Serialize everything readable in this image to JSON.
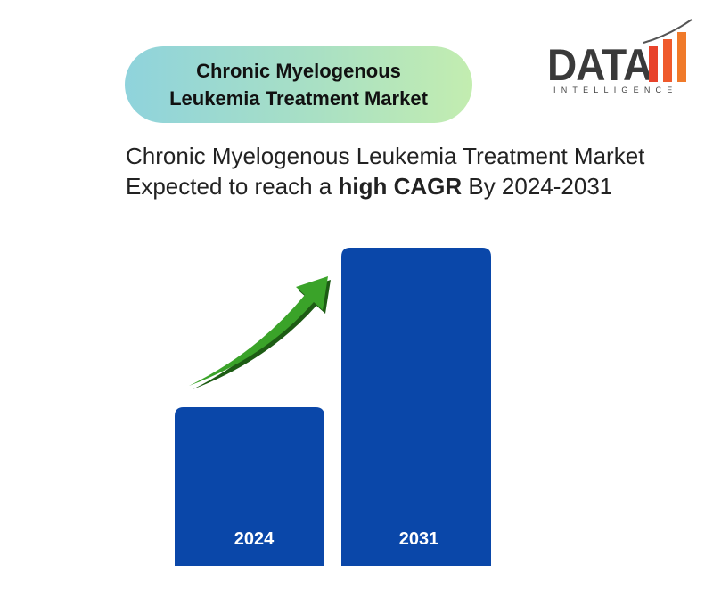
{
  "header": {
    "title": "Chronic Myelogenous Leukemia Treatment Market"
  },
  "logo": {
    "name": "DATA",
    "tagline": "INTELLIGENCE"
  },
  "headline": {
    "before": "Chronic Myelogenous Leukemia Treatment Market Expected to reach a ",
    "emphasis": "high CAGR",
    "after": " By 2024-2031"
  },
  "bars": [
    {
      "label": "2024"
    },
    {
      "label": "2031"
    }
  ]
}
